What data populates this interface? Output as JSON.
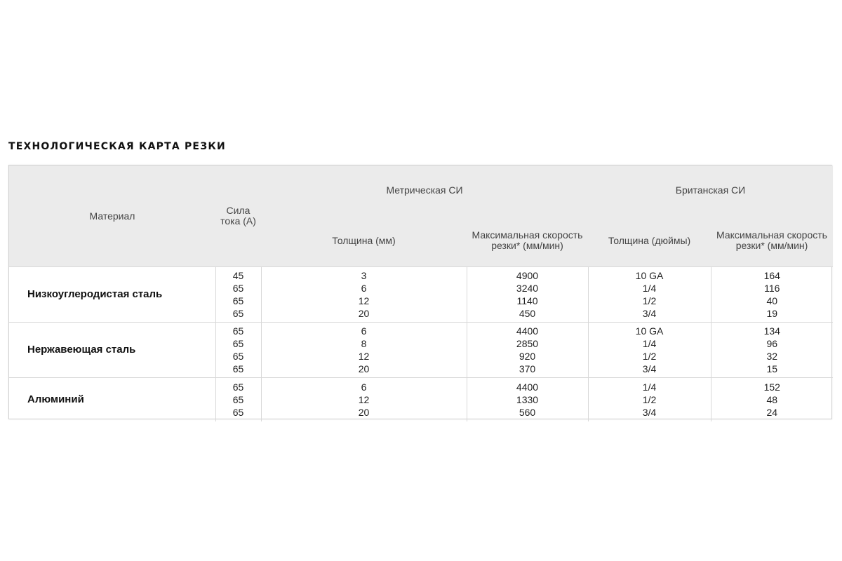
{
  "title": "ТЕХНОЛОГИЧЕСКАЯ КАРТА РЕЗКИ",
  "header": {
    "material": "Материал",
    "current": "Сила тока (А)",
    "metric_group": "Метрическая СИ",
    "imperial_group": "Британская СИ",
    "metric_thickness": "Толщина (мм)",
    "metric_speed": "Максимальная скорость резки* (мм/мин)",
    "imperial_thickness": "Толщина (дюймы)",
    "imperial_speed": "Максимальная скорость резки* (мм/мин)"
  },
  "rows": [
    {
      "material": "Низкоуглеродистая сталь",
      "current": [
        "45",
        "65",
        "65",
        "65"
      ],
      "metric_thickness": [
        "3",
        "6",
        "12",
        "20"
      ],
      "metric_speed": [
        "4900",
        "3240",
        "1140",
        "450"
      ],
      "imperial_thickness": [
        "10 GA",
        "1/4",
        "1/2",
        "3/4"
      ],
      "imperial_speed": [
        "164",
        "116",
        "40",
        "19"
      ]
    },
    {
      "material": "Нержавеющая сталь",
      "current": [
        "65",
        "65",
        "65",
        "65"
      ],
      "metric_thickness": [
        "6",
        "8",
        "12",
        "20"
      ],
      "metric_speed": [
        "4400",
        "2850",
        "920",
        "370"
      ],
      "imperial_thickness": [
        "10 GA",
        "1/4",
        "1/2",
        "3/4"
      ],
      "imperial_speed": [
        "134",
        "96",
        "32",
        "15"
      ]
    },
    {
      "material": "Алюминий",
      "current": [
        "65",
        "65",
        "65"
      ],
      "metric_thickness": [
        "6",
        "12",
        "20"
      ],
      "metric_speed": [
        "4400",
        "1330",
        "560"
      ],
      "imperial_thickness": [
        "1/4",
        "1/2",
        "3/4"
      ],
      "imperial_speed": [
        "152",
        "48",
        "24"
      ]
    }
  ]
}
